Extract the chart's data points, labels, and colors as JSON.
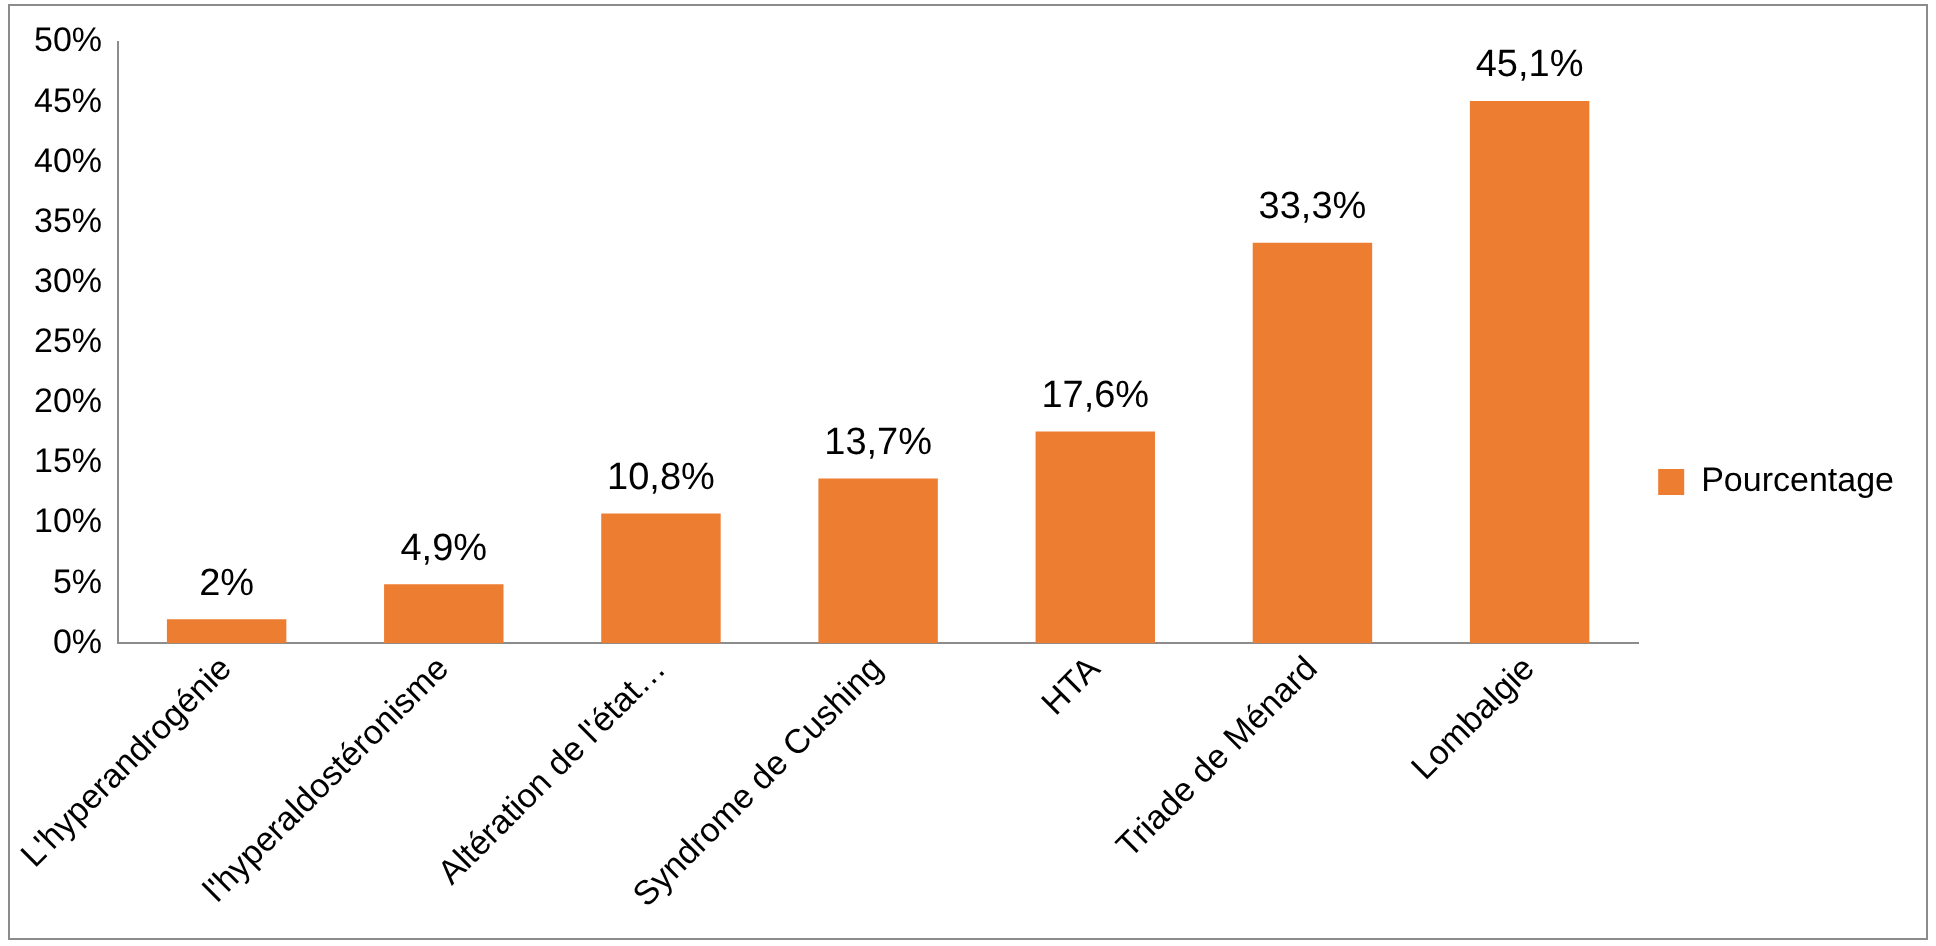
{
  "chart_data": {
    "type": "bar",
    "categories": [
      "L'hyperandrogénie",
      "l'hyperaldostéronisme",
      "Altération de l'état…",
      "Syndrome de Cushing",
      "HTA",
      "Triade de Ménard",
      "Lombalgie"
    ],
    "series": [
      {
        "name": "Pourcentage",
        "color": "#ed7d31",
        "values": [
          2,
          4.9,
          10.8,
          13.7,
          17.6,
          33.3,
          45.1
        ],
        "value_labels": [
          "2%",
          "4,9%",
          "10,8%",
          "13,7%",
          "17,6%",
          "33,3%",
          "45,1%"
        ]
      }
    ],
    "ylim": [
      0,
      50
    ],
    "yticks": [
      {
        "value": 0,
        "label": "0%"
      },
      {
        "value": 5,
        "label": "5%"
      },
      {
        "value": 10,
        "label": "10%"
      },
      {
        "value": 15,
        "label": "15%"
      },
      {
        "value": 20,
        "label": "20%"
      },
      {
        "value": 25,
        "label": "25%"
      },
      {
        "value": 30,
        "label": "30%"
      },
      {
        "value": 35,
        "label": "35%"
      },
      {
        "value": 40,
        "label": "40%"
      },
      {
        "value": 45,
        "label": "45%"
      },
      {
        "value": 50,
        "label": "50%"
      }
    ],
    "grid": false,
    "legend": "right"
  }
}
